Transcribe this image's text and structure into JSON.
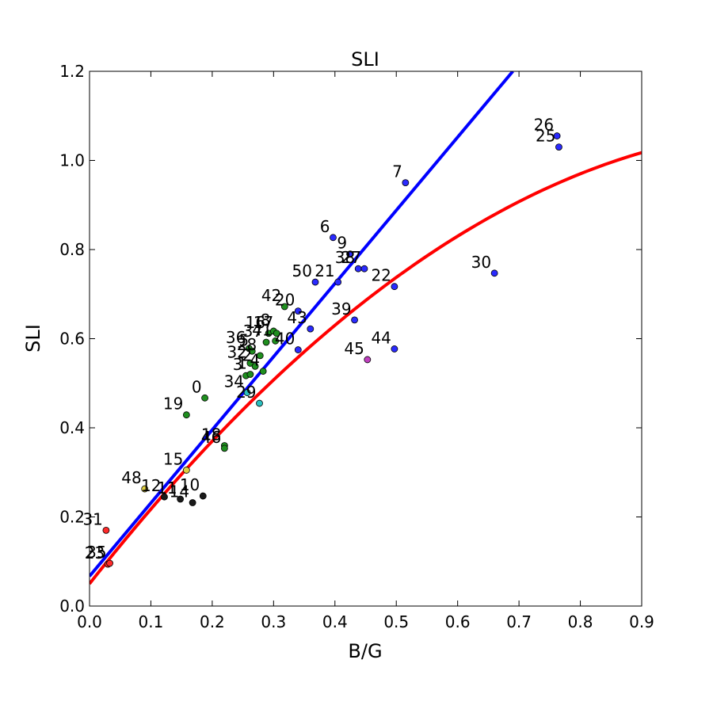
{
  "chart_data": {
    "type": "scatter",
    "title": "SLI",
    "xlabel": "B/G",
    "ylabel": "SLI",
    "xlim": [
      0.0,
      0.9
    ],
    "ylim": [
      0.0,
      1.2
    ],
    "xticks": [
      "0.0",
      "0.1",
      "0.2",
      "0.3",
      "0.4",
      "0.5",
      "0.6",
      "0.7",
      "0.8",
      "0.9"
    ],
    "yticks": [
      "0.0",
      "0.2",
      "0.4",
      "0.6",
      "0.8",
      "1.0",
      "1.2"
    ],
    "grid": false,
    "colors": {
      "linear_fit": "#0000ff",
      "curve_fit": "#ff0000",
      "blue_points": "#2a2aff",
      "green_points": "#1f8f1f",
      "black_points": "#1a1a1a",
      "red_points": "#ff2a2a",
      "yellow_points": "#e0d040",
      "cyan_points": "#2ac0c0",
      "magenta_points": "#c040c0"
    },
    "lines": [
      {
        "kind": "linear",
        "color": "linear_fit",
        "x": [
          0.0,
          0.69
        ],
        "y": [
          0.067,
          1.2
        ]
      },
      {
        "kind": "quadratic",
        "color": "curve_fit",
        "x_range": [
          0.0,
          0.9
        ],
        "coeffs": [
          0.05,
          1.75,
          -0.75
        ]
      }
    ],
    "points": [
      {
        "label": "26",
        "x": 0.762,
        "y": 1.055,
        "color": "blue_points"
      },
      {
        "label": "25",
        "x": 0.765,
        "y": 1.03,
        "color": "blue_points"
      },
      {
        "label": "7",
        "x": 0.515,
        "y": 0.95,
        "color": "blue_points"
      },
      {
        "label": "6",
        "x": 0.397,
        "y": 0.827,
        "color": "blue_points"
      },
      {
        "label": "9",
        "x": 0.425,
        "y": 0.79,
        "color": "blue_points"
      },
      {
        "label": "38",
        "x": 0.438,
        "y": 0.757,
        "color": "blue_points"
      },
      {
        "label": "27",
        "x": 0.448,
        "y": 0.757,
        "color": "blue_points"
      },
      {
        "label": "30",
        "x": 0.66,
        "y": 0.747,
        "color": "blue_points"
      },
      {
        "label": "50",
        "x": 0.368,
        "y": 0.727,
        "color": "blue_points"
      },
      {
        "label": "21",
        "x": 0.405,
        "y": 0.727,
        "color": "blue_points"
      },
      {
        "label": "22",
        "x": 0.497,
        "y": 0.717,
        "color": "blue_points"
      },
      {
        "label": "42",
        "x": 0.318,
        "y": 0.672,
        "color": "green_points"
      },
      {
        "label": "20",
        "x": 0.34,
        "y": 0.662,
        "color": "blue_points"
      },
      {
        "label": "39",
        "x": 0.432,
        "y": 0.642,
        "color": "blue_points"
      },
      {
        "label": "43",
        "x": 0.36,
        "y": 0.622,
        "color": "blue_points"
      },
      {
        "label": "16",
        "x": 0.292,
        "y": 0.612,
        "color": "green_points"
      },
      {
        "label": "8",
        "x": 0.3,
        "y": 0.617,
        "color": "green_points"
      },
      {
        "label": "17",
        "x": 0.305,
        "y": 0.612,
        "color": "green_points"
      },
      {
        "label": "41",
        "x": 0.303,
        "y": 0.595,
        "color": "green_points"
      },
      {
        "label": "40",
        "x": 0.34,
        "y": 0.575,
        "color": "blue_points"
      },
      {
        "label": "44",
        "x": 0.497,
        "y": 0.577,
        "color": "blue_points"
      },
      {
        "label": "45",
        "x": 0.453,
        "y": 0.553,
        "color": "magenta_points"
      },
      {
        "label": "37",
        "x": 0.288,
        "y": 0.592,
        "color": "green_points"
      },
      {
        "label": "36",
        "x": 0.26,
        "y": 0.578,
        "color": "green_points"
      },
      {
        "label": "5",
        "x": 0.265,
        "y": 0.572,
        "color": "green_points"
      },
      {
        "label": "28",
        "x": 0.278,
        "y": 0.562,
        "color": "green_points"
      },
      {
        "label": "32",
        "x": 0.262,
        "y": 0.545,
        "color": "green_points"
      },
      {
        "label": "2",
        "x": 0.27,
        "y": 0.538,
        "color": "green_points"
      },
      {
        "label": "3",
        "x": 0.255,
        "y": 0.517,
        "color": "green_points"
      },
      {
        "label": "1",
        "x": 0.262,
        "y": 0.52,
        "color": "green_points"
      },
      {
        "label": "4",
        "x": 0.283,
        "y": 0.527,
        "color": "green_points"
      },
      {
        "label": "0",
        "x": 0.188,
        "y": 0.467,
        "color": "green_points"
      },
      {
        "label": "34",
        "x": 0.257,
        "y": 0.479,
        "color": "cyan_points"
      },
      {
        "label": "29",
        "x": 0.277,
        "y": 0.455,
        "color": "cyan_points"
      },
      {
        "label": "19",
        "x": 0.158,
        "y": 0.429,
        "color": "green_points"
      },
      {
        "label": "18",
        "x": 0.22,
        "y": 0.36,
        "color": "green_points"
      },
      {
        "label": "46",
        "x": 0.22,
        "y": 0.354,
        "color": "green_points"
      },
      {
        "label": "15",
        "x": 0.158,
        "y": 0.305,
        "color": "yellow_points"
      },
      {
        "label": "48",
        "x": 0.09,
        "y": 0.263,
        "color": "yellow_points"
      },
      {
        "label": "12",
        "x": 0.122,
        "y": 0.245,
        "color": "black_points"
      },
      {
        "label": "11",
        "x": 0.148,
        "y": 0.24,
        "color": "black_points"
      },
      {
        "label": "14",
        "x": 0.168,
        "y": 0.232,
        "color": "black_points"
      },
      {
        "label": "10",
        "x": 0.185,
        "y": 0.247,
        "color": "black_points"
      },
      {
        "label": "31",
        "x": 0.027,
        "y": 0.17,
        "color": "red_points"
      },
      {
        "label": "23",
        "x": 0.03,
        "y": 0.094,
        "color": "red_points"
      },
      {
        "label": "35",
        "x": 0.033,
        "y": 0.096,
        "color": "red_points"
      }
    ]
  }
}
